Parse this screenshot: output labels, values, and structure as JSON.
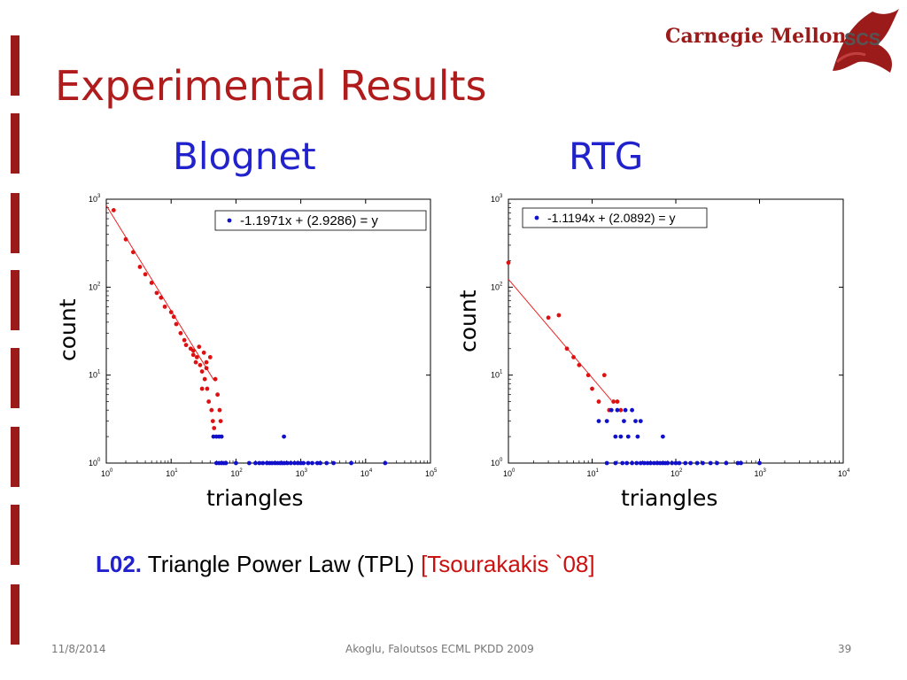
{
  "slide": {
    "title": "Experimental Results",
    "logo_text": "Carnegie Mellon",
    "logo_badge": "SCS",
    "caption_label": "L02.",
    "caption_text": "Triangle Power Law (TPL)",
    "caption_ref": "[Tsourakakis `08]",
    "footer_date": "11/8/2014",
    "footer_center": "Akoglu, Faloutsos ECML PKDD 2009",
    "footer_page": "39",
    "accent_color": "#9b1b1b",
    "title_color": "#b01c1c",
    "subtitle_color": "#2222cc"
  },
  "chart_data": [
    {
      "type": "scatter",
      "title": "Blognet",
      "xlabel": "triangles",
      "ylabel": "count",
      "x_scale": "log",
      "y_scale": "log",
      "xlim": [
        1,
        100000
      ],
      "ylim": [
        1,
        1000
      ],
      "x_ticks": [
        1,
        10,
        100,
        1000,
        10000,
        100000
      ],
      "y_ticks": [
        1,
        10,
        100,
        1000
      ],
      "legend": "-1.1971x + (2.9286) = y",
      "fit": {
        "slope": -1.1971,
        "intercept": 2.9286,
        "x_range": [
          1,
          45
        ]
      },
      "series": [
        {
          "color": "#dd1111",
          "points": [
            [
              1.3,
              750
            ],
            [
              2,
              350
            ],
            [
              2.6,
              250
            ],
            [
              3.3,
              170
            ],
            [
              4,
              140
            ],
            [
              5,
              112
            ],
            [
              6,
              86
            ],
            [
              7,
              76
            ],
            [
              8,
              60
            ],
            [
              10,
              52
            ],
            [
              11,
              46
            ],
            [
              12,
              38
            ],
            [
              14,
              30
            ],
            [
              16,
              25
            ],
            [
              17,
              22
            ],
            [
              20,
              20
            ],
            [
              22,
              17
            ],
            [
              24,
              14
            ],
            [
              25,
              16
            ],
            [
              27,
              21
            ],
            [
              28,
              13
            ],
            [
              30,
              11
            ],
            [
              32,
              18
            ],
            [
              33,
              9
            ],
            [
              35,
              14
            ],
            [
              36,
              7
            ],
            [
              38,
              5
            ],
            [
              40,
              16
            ],
            [
              42,
              4
            ],
            [
              44,
              3
            ],
            [
              46,
              2.5
            ],
            [
              48,
              9
            ],
            [
              52,
              6
            ],
            [
              56,
              4
            ],
            [
              58,
              3
            ],
            [
              30,
              7
            ],
            [
              35,
              12
            ],
            [
              22,
              19
            ]
          ]
        },
        {
          "color": "#1111cc",
          "points": [
            [
              45,
              2
            ],
            [
              50,
              2
            ],
            [
              55,
              2
            ],
            [
              60,
              2
            ],
            [
              50,
              1
            ],
            [
              55,
              1
            ],
            [
              60,
              1
            ],
            [
              65,
              1
            ],
            [
              70,
              1
            ],
            [
              100,
              1
            ],
            [
              160,
              1
            ],
            [
              200,
              1
            ],
            [
              230,
              1
            ],
            [
              260,
              1
            ],
            [
              300,
              1
            ],
            [
              330,
              1
            ],
            [
              360,
              1
            ],
            [
              400,
              1
            ],
            [
              440,
              1
            ],
            [
              480,
              1
            ],
            [
              520,
              1
            ],
            [
              560,
              1
            ],
            [
              620,
              1
            ],
            [
              700,
              1
            ],
            [
              800,
              1
            ],
            [
              900,
              1
            ],
            [
              1000,
              1
            ],
            [
              1100,
              1
            ],
            [
              1300,
              1
            ],
            [
              1500,
              1
            ],
            [
              1800,
              1
            ],
            [
              2000,
              1
            ],
            [
              2500,
              1
            ],
            [
              3200,
              1
            ],
            [
              6000,
              1
            ],
            [
              20000,
              1
            ],
            [
              550,
              2
            ]
          ]
        }
      ]
    },
    {
      "type": "scatter",
      "title": "RTG",
      "xlabel": "triangles",
      "ylabel": "count",
      "x_scale": "log",
      "y_scale": "log",
      "xlim": [
        1,
        10000
      ],
      "ylim": [
        1,
        1000
      ],
      "x_ticks": [
        1,
        10,
        100,
        1000,
        10000
      ],
      "y_ticks": [
        1,
        10,
        100,
        1000
      ],
      "legend": "-1.1194x + (2.0892) = y",
      "fit": {
        "slope": -1.1194,
        "intercept": 2.0892,
        "x_range": [
          1,
          17
        ]
      },
      "series": [
        {
          "color": "#dd1111",
          "points": [
            [
              1,
              190
            ],
            [
              3,
              45
            ],
            [
              4,
              48
            ],
            [
              5,
              20
            ],
            [
              6,
              16
            ],
            [
              7,
              13
            ],
            [
              9,
              10
            ],
            [
              10,
              7
            ],
            [
              12,
              5
            ],
            [
              14,
              10
            ],
            [
              16,
              4
            ],
            [
              18,
              5
            ],
            [
              20,
              5
            ],
            [
              22,
              4
            ]
          ]
        },
        {
          "color": "#1111cc",
          "points": [
            [
              12,
              3
            ],
            [
              15,
              3
            ],
            [
              17,
              4
            ],
            [
              19,
              2
            ],
            [
              20,
              4
            ],
            [
              22,
              2
            ],
            [
              24,
              3
            ],
            [
              25,
              4
            ],
            [
              27,
              2
            ],
            [
              30,
              4
            ],
            [
              33,
              3
            ],
            [
              35,
              2
            ],
            [
              38,
              3
            ],
            [
              70,
              2
            ],
            [
              15,
              1
            ],
            [
              19,
              1
            ],
            [
              23,
              1
            ],
            [
              26,
              1
            ],
            [
              30,
              1
            ],
            [
              34,
              1
            ],
            [
              38,
              1
            ],
            [
              42,
              1
            ],
            [
              46,
              1
            ],
            [
              50,
              1
            ],
            [
              55,
              1
            ],
            [
              60,
              1
            ],
            [
              65,
              1
            ],
            [
              70,
              1
            ],
            [
              75,
              1
            ],
            [
              80,
              1
            ],
            [
              90,
              1
            ],
            [
              100,
              1
            ],
            [
              110,
              1
            ],
            [
              130,
              1
            ],
            [
              150,
              1
            ],
            [
              180,
              1
            ],
            [
              210,
              1
            ],
            [
              260,
              1
            ],
            [
              310,
              1
            ],
            [
              400,
              1
            ],
            [
              550,
              1
            ],
            [
              600,
              1
            ],
            [
              1000,
              1
            ]
          ]
        }
      ]
    }
  ]
}
